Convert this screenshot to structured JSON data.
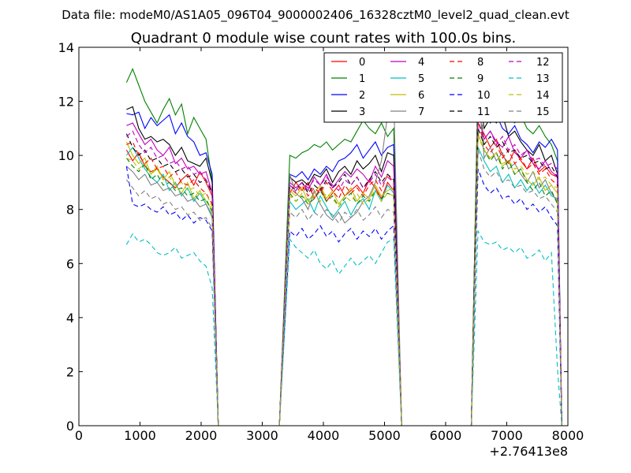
{
  "chart_data": {
    "type": "line",
    "suptitle": "Data file: modeM0/AS1A05_096T04_9000002406_16328cztM0_level2_quad_clean.evt",
    "title": "Quadrant 0 module wise count rates with 100.0s bins.",
    "xlabel": "",
    "ylabel": "",
    "x_offset_label": "+2.76413e8",
    "xlim": [
      0,
      8000
    ],
    "ylim": [
      0,
      14
    ],
    "x_ticks": [
      0,
      1000,
      2000,
      3000,
      4000,
      5000,
      6000,
      7000,
      8000
    ],
    "x_tick_labels": [
      "0",
      "1000",
      "2000",
      "3000",
      "4000",
      "5000",
      "6000",
      "7000",
      "8000"
    ],
    "y_ticks": [
      0,
      2,
      4,
      6,
      8,
      10,
      12,
      14
    ],
    "y_tick_labels": [
      "0",
      "2",
      "4",
      "6",
      "8",
      "10",
      "12",
      "14"
    ],
    "grid": false,
    "legend_position": "top-right",
    "segments": [
      {
        "x_start": 780,
        "x_end": 2180
      },
      {
        "x_start": 3450,
        "x_end": 5150
      },
      {
        "x_start": 6530,
        "x_end": 7830
      }
    ],
    "gap_ranges": [
      [
        2280,
        3280
      ],
      [
        5280,
        6420
      ]
    ],
    "segment_edges": [
      {
        "from_x": 2180,
        "zero_x": 2280,
        "direction": "down"
      },
      {
        "zero_x": 3280,
        "to_x": 3450,
        "direction": "up"
      },
      {
        "from_x": 5150,
        "zero_x": 5280,
        "direction": "down"
      },
      {
        "zero_x": 6420,
        "to_x": 6530,
        "direction": "up"
      },
      {
        "from_x": 7830,
        "zero_x": 7900,
        "direction": "down"
      }
    ],
    "series": [
      {
        "name": "0",
        "color": "#ff0000",
        "dash": "solid",
        "values": [
          [
            10.2,
            9.8,
            10.1,
            9.6,
            9.4,
            9.5,
            9.2,
            9.0,
            8.8,
            9.1,
            9.3,
            8.9,
            9.4,
            9.0,
            8.5
          ],
          [
            8.6,
            9.0,
            8.7,
            9.0,
            8.4,
            8.8,
            8.3,
            8.6,
            8.9,
            8.5,
            8.7,
            8.9,
            8.6,
            9.1,
            8.8,
            8.4,
            9.0,
            8.7
          ],
          [
            11.2,
            10.8,
            10.3,
            10.6,
            10.0,
            9.7,
            10.2,
            9.8,
            9.5,
            9.9,
            9.4,
            9.6,
            9.3,
            9.2
          ]
        ]
      },
      {
        "name": "1",
        "color": "#008000",
        "dash": "solid",
        "values": [
          [
            12.7,
            13.2,
            12.6,
            12.0,
            11.6,
            11.2,
            11.7,
            12.1,
            11.5,
            11.9,
            10.8,
            11.4,
            11.0,
            10.6,
            9.0
          ],
          [
            10.0,
            9.9,
            10.1,
            10.2,
            10.4,
            10.3,
            10.5,
            10.2,
            10.4,
            10.6,
            10.5,
            10.9,
            11.3,
            11.0,
            10.8,
            11.2,
            10.7,
            11.0
          ],
          [
            13.0,
            12.0,
            11.8,
            11.6,
            12.0,
            11.4,
            11.2,
            11.5,
            11.0,
            10.8,
            11.1,
            10.7,
            10.4,
            9.8
          ]
        ]
      },
      {
        "name": "2",
        "color": "#0000ff",
        "dash": "solid",
        "values": [
          [
            11.55,
            11.5,
            11.6,
            11.0,
            11.4,
            11.1,
            11.3,
            11.5,
            10.8,
            11.2,
            10.7,
            10.5,
            10.0,
            10.1,
            9.3
          ],
          [
            9.3,
            9.2,
            9.4,
            9.1,
            9.5,
            9.3,
            9.6,
            9.4,
            9.8,
            9.9,
            10.1,
            10.4,
            9.9,
            10.2,
            10.5,
            10.0,
            10.3,
            10.4
          ],
          [
            12.5,
            11.5,
            11.2,
            11.5,
            11.0,
            10.8,
            11.1,
            10.6,
            10.4,
            10.1,
            10.5,
            10.3,
            10.6,
            10.2
          ]
        ]
      },
      {
        "name": "3",
        "color": "#000000",
        "dash": "solid",
        "values": [
          [
            11.7,
            11.8,
            11.0,
            10.6,
            10.7,
            10.5,
            10.6,
            10.4,
            10.0,
            10.3,
            9.8,
            9.7,
            9.6,
            9.9,
            9.0
          ],
          [
            9.2,
            9.0,
            9.1,
            8.9,
            9.3,
            9.2,
            9.5,
            9.0,
            9.4,
            9.6,
            9.3,
            9.8,
            9.5,
            9.7,
            10.0,
            9.4,
            10.1,
            10.0
          ],
          [
            12.6,
            11.0,
            11.4,
            11.2,
            11.5,
            10.7,
            10.9,
            10.5,
            10.2,
            10.0,
            10.4,
            9.8,
            10.0,
            9.3
          ]
        ]
      },
      {
        "name": "4",
        "color": "#bf00bf",
        "dash": "solid",
        "values": [
          [
            11.1,
            11.2,
            10.8,
            10.4,
            10.6,
            10.2,
            10.0,
            10.3,
            9.7,
            9.9,
            9.5,
            9.6,
            9.3,
            9.4,
            8.6
          ],
          [
            9.0,
            8.8,
            9.0,
            8.7,
            9.2,
            8.9,
            9.3,
            8.8,
            9.1,
            9.4,
            9.2,
            9.5,
            9.3,
            9.0,
            9.6,
            9.2,
            9.8,
            9.6
          ],
          [
            11.8,
            10.6,
            10.9,
            10.5,
            10.3,
            10.7,
            10.1,
            9.9,
            10.2,
            9.7,
            9.5,
            9.8,
            9.4,
            9.2
          ]
        ]
      },
      {
        "name": "5",
        "color": "#00bfbf",
        "dash": "solid",
        "values": [
          [
            10.0,
            10.3,
            9.9,
            9.5,
            9.2,
            9.0,
            9.3,
            8.7,
            9.0,
            8.5,
            8.8,
            8.3,
            8.6,
            8.2,
            7.8
          ],
          [
            8.3,
            8.0,
            8.2,
            8.4,
            7.9,
            8.5,
            8.1,
            7.7,
            8.0,
            8.3,
            7.8,
            8.2,
            8.4,
            8.0,
            8.7,
            8.3,
            8.9,
            8.6
          ],
          [
            10.3,
            9.8,
            9.4,
            9.6,
            9.0,
            9.3,
            8.8,
            9.1,
            8.7,
            9.0,
            8.6,
            8.9,
            8.5,
            8.4
          ]
        ]
      },
      {
        "name": "6",
        "color": "#bfbf00",
        "dash": "solid",
        "values": [
          [
            10.5,
            10.0,
            9.7,
            9.9,
            9.3,
            9.6,
            9.1,
            9.4,
            8.9,
            8.6,
            9.0,
            8.4,
            8.7,
            8.3,
            8.0
          ],
          [
            8.7,
            8.5,
            8.8,
            8.3,
            8.6,
            8.9,
            8.4,
            8.7,
            8.2,
            8.5,
            8.8,
            8.3,
            8.6,
            8.4,
            8.9,
            8.5,
            8.7,
            8.8
          ],
          [
            10.8,
            10.2,
            9.9,
            10.1,
            9.6,
            9.8,
            9.3,
            9.5,
            9.1,
            8.9,
            9.2,
            8.7,
            8.9,
            8.6
          ]
        ]
      },
      {
        "name": "7",
        "color": "#808080",
        "dash": "solid",
        "values": [
          [
            9.6,
            9.4,
            9.1,
            9.3,
            8.9,
            9.0,
            8.7,
            8.8,
            8.5,
            8.6,
            8.3,
            8.4,
            8.1,
            8.2,
            7.7
          ],
          [
            9.3,
            8.6,
            8.4,
            8.0,
            8.7,
            8.2,
            7.8,
            7.6,
            7.9,
            7.5,
            7.7,
            7.9,
            8.3,
            8.5,
            9.0,
            9.8,
            11.5,
            12.3
          ],
          [
            12.6,
            9.9,
            10.3,
            9.8,
            10.1,
            9.5,
            9.7,
            9.3,
            9.0,
            9.4,
            8.8,
            9.1,
            8.6,
            8.3
          ]
        ]
      },
      {
        "name": "8",
        "color": "#ff0000",
        "dash": "dashed",
        "values": [
          [
            10.4,
            10.5,
            10.0,
            9.7,
            9.9,
            9.5,
            9.6,
            9.2,
            9.4,
            9.0,
            8.9,
            9.1,
            8.8,
            8.6,
            8.2
          ],
          [
            8.8,
            8.6,
            8.9,
            8.5,
            8.8,
            8.6,
            9.0,
            8.7,
            8.4,
            8.9,
            8.6,
            8.8,
            8.5,
            8.9,
            9.1,
            8.7,
            9.3,
            9.0
          ],
          [
            11.3,
            10.4,
            10.1,
            10.4,
            9.9,
            10.2,
            9.7,
            9.9,
            9.5,
            9.7,
            9.3,
            9.5,
            9.1,
            8.9
          ]
        ]
      },
      {
        "name": "9",
        "color": "#008000",
        "dash": "dashed",
        "values": [
          [
            9.9,
            9.6,
            9.4,
            9.7,
            9.1,
            9.3,
            8.9,
            9.0,
            8.7,
            8.8,
            8.5,
            8.6,
            8.3,
            8.4,
            7.9
          ],
          [
            8.6,
            8.3,
            8.5,
            8.2,
            8.4,
            8.7,
            8.3,
            8.5,
            8.1,
            8.4,
            8.6,
            8.2,
            8.5,
            8.3,
            8.7,
            8.4,
            8.6,
            8.5
          ],
          [
            13.0,
            10.2,
            9.8,
            10.1,
            9.5,
            9.8,
            9.3,
            9.5,
            9.0,
            8.7,
            9.0,
            8.5,
            8.7,
            8.2
          ]
        ]
      },
      {
        "name": "10",
        "color": "#0000ff",
        "dash": "dashed",
        "values": [
          [
            9.6,
            8.2,
            8.1,
            8.2,
            8.0,
            7.9,
            8.1,
            7.8,
            7.9,
            7.6,
            7.8,
            7.5,
            7.7,
            7.6,
            7.2
          ],
          [
            7.2,
            7.0,
            7.3,
            6.9,
            7.1,
            7.4,
            7.0,
            7.2,
            6.8,
            7.1,
            7.3,
            6.9,
            7.2,
            7.0,
            7.3,
            6.9,
            7.2,
            7.4
          ],
          [
            9.5,
            8.9,
            8.6,
            8.8,
            8.4,
            8.5,
            8.2,
            8.4,
            8.0,
            8.2,
            7.9,
            8.1,
            7.7,
            7.4
          ]
        ]
      },
      {
        "name": "11",
        "color": "#000000",
        "dash": "dashed",
        "values": [
          [
            10.8,
            10.3,
            10.0,
            10.2,
            9.8,
            9.9,
            9.6,
            9.7,
            9.4,
            9.5,
            9.2,
            9.3,
            9.0,
            9.1,
            8.6
          ],
          [
            8.9,
            8.7,
            9.0,
            8.6,
            8.9,
            8.7,
            9.1,
            8.8,
            9.0,
            9.3,
            8.9,
            9.2,
            8.8,
            9.1,
            9.4,
            9.0,
            9.3,
            9.1
          ],
          [
            11.0,
            10.4,
            10.7,
            10.3,
            10.5,
            10.1,
            10.2,
            9.9,
            10.0,
            9.7,
            9.8,
            9.5,
            9.6,
            9.2
          ]
        ]
      },
      {
        "name": "12",
        "color": "#bf00bf",
        "dash": "dashed",
        "values": [
          [
            10.7,
            10.9,
            10.4,
            10.1,
            10.3,
            9.9,
            10.0,
            9.7,
            9.8,
            9.5,
            9.6,
            9.3,
            9.4,
            9.1,
            8.7
          ],
          [
            8.9,
            8.7,
            9.0,
            8.8,
            9.1,
            8.9,
            9.2,
            8.9,
            8.7,
            9.1,
            8.9,
            9.2,
            8.8,
            9.0,
            9.3,
            8.9,
            9.2,
            9.0
          ],
          [
            11.3,
            10.6,
            10.9,
            10.4,
            10.7,
            10.2,
            10.4,
            10.0,
            10.2,
            9.8,
            9.9,
            9.6,
            9.7,
            9.5
          ]
        ]
      },
      {
        "name": "13",
        "color": "#00bfbf",
        "dash": "dashed",
        "values": [
          [
            6.7,
            7.1,
            6.8,
            6.9,
            6.7,
            6.4,
            6.3,
            6.4,
            6.6,
            6.2,
            6.3,
            6.4,
            6.1,
            5.9,
            5.1
          ],
          [
            6.9,
            6.6,
            6.4,
            6.2,
            6.5,
            6.0,
            5.8,
            6.1,
            5.6,
            5.9,
            6.2,
            5.9,
            6.1,
            6.3,
            6.0,
            6.4,
            6.8,
            6.9
          ],
          [
            7.2,
            6.8,
            6.7,
            6.8,
            6.5,
            6.6,
            6.4,
            6.6,
            6.2,
            6.3,
            6.5,
            6.1,
            6.4,
            2.1
          ]
        ]
      },
      {
        "name": "14",
        "color": "#bfbf00",
        "dash": "dashed",
        "values": [
          [
            9.9,
            9.8,
            9.5,
            9.7,
            9.3,
            9.5,
            9.1,
            9.2,
            8.9,
            9.0,
            8.7,
            8.8,
            8.5,
            8.6,
            8.1
          ],
          [
            8.5,
            8.3,
            8.6,
            8.2,
            8.5,
            8.3,
            8.6,
            8.4,
            8.1,
            8.5,
            8.3,
            8.6,
            8.2,
            8.4,
            8.7,
            8.3,
            8.6,
            8.5
          ],
          [
            10.7,
            10.2,
            9.9,
            10.1,
            9.7,
            9.8,
            9.5,
            9.6,
            9.3,
            9.4,
            9.1,
            9.2,
            8.9,
            8.8
          ]
        ]
      },
      {
        "name": "15",
        "color": "#808080",
        "dash": "dashed",
        "values": [
          [
            9.1,
            8.8,
            8.5,
            8.7,
            8.4,
            8.5,
            8.2,
            8.3,
            8.0,
            8.1,
            7.8,
            7.9,
            7.6,
            7.7,
            7.3
          ],
          [
            7.9,
            7.7,
            8.0,
            7.6,
            7.9,
            7.7,
            8.0,
            7.8,
            7.5,
            7.9,
            7.7,
            8.0,
            7.6,
            7.8,
            8.1,
            7.7,
            8.0,
            7.9
          ],
          [
            10.2,
            9.5,
            9.2,
            9.4,
            9.0,
            9.1,
            8.8,
            8.9,
            8.6,
            8.7,
            8.4,
            8.5,
            8.2,
            7.9
          ]
        ]
      }
    ]
  }
}
